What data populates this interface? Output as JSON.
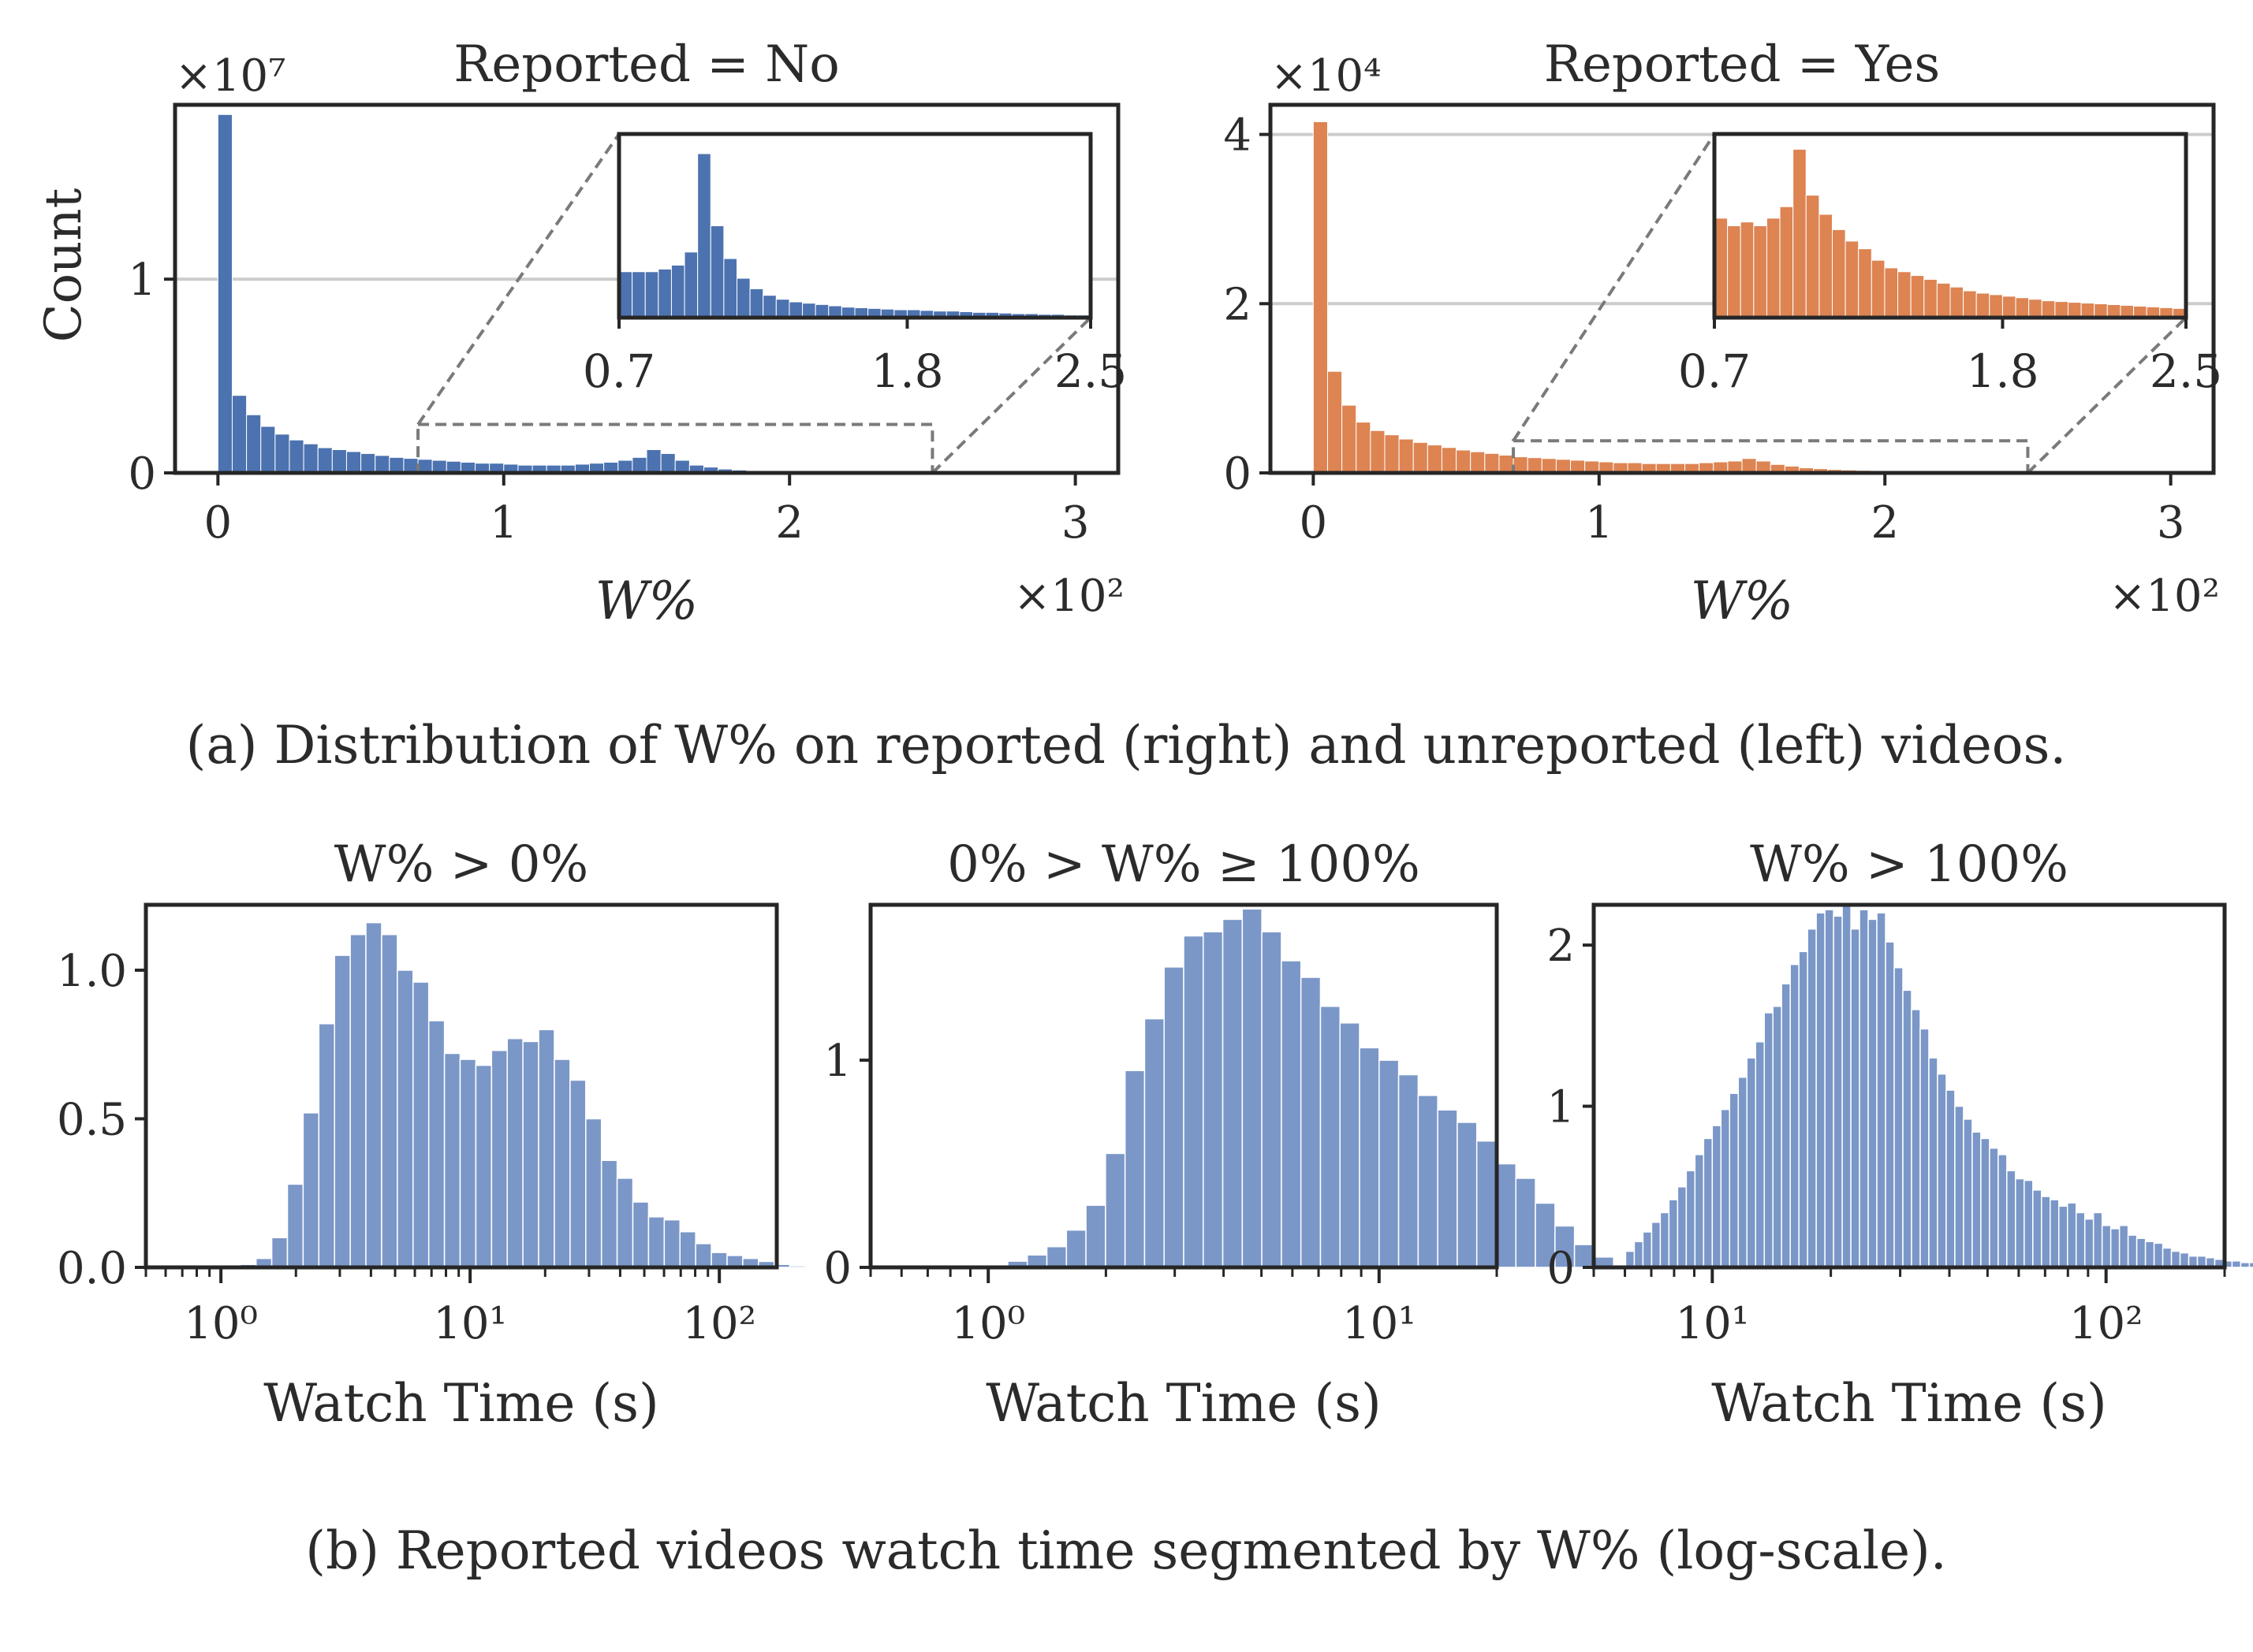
{
  "figure": {
    "caption_a": "(a) Distribution of W% on reported (right) and unreported (left) videos.",
    "caption_b": "(b) Reported videos watch time segmented by W% (log-scale).",
    "colors": {
      "blue": "#4c72b0",
      "orange": "#dd8452",
      "bar_light": "#7b97c8",
      "axis": "#262626",
      "grid": "#cccccc",
      "zoom": "#7a7a7a"
    }
  },
  "chart_data": [
    {
      "id": "no",
      "type": "bar",
      "title": "Reported = No",
      "xlabel": "W%",
      "ylabel": "Count",
      "x_multiplier": "×10²",
      "y_multiplier": "×10⁷",
      "color": "#4c72b0",
      "xlim": [
        -0.15,
        3.15
      ],
      "ylim": [
        0,
        1.9
      ],
      "xticks": [
        0,
        1,
        2,
        3
      ],
      "xtick_labels": [
        "0",
        "1",
        "2",
        "3"
      ],
      "yticks": [
        0,
        1
      ],
      "ytick_labels": [
        "0",
        "1"
      ],
      "grid_y": true,
      "bin_width": 0.05,
      "x_start": 0,
      "values": [
        1.85,
        0.4,
        0.3,
        0.24,
        0.2,
        0.17,
        0.15,
        0.13,
        0.12,
        0.11,
        0.1,
        0.09,
        0.08,
        0.075,
        0.07,
        0.065,
        0.06,
        0.055,
        0.05,
        0.05,
        0.045,
        0.04,
        0.04,
        0.04,
        0.04,
        0.045,
        0.05,
        0.055,
        0.065,
        0.08,
        0.12,
        0.1,
        0.065,
        0.04,
        0.03,
        0.02,
        0.015,
        0.01,
        0.008,
        0.006,
        0.005,
        0.004,
        0.003,
        0.003,
        0.002,
        0.002,
        0.002,
        0.001,
        0.001,
        0.001,
        0.001,
        0.001,
        0.001,
        0.001,
        0.001
      ],
      "zoom_rect": {
        "x": [
          0.7,
          2.5
        ],
        "y": [
          0,
          0.25
        ]
      },
      "inset": {
        "xlim": [
          0.7,
          2.5
        ],
        "ylim": [
          0,
          0.14
        ],
        "xticks": [
          0.7,
          1.8,
          2.5
        ],
        "xtick_labels": [
          "0.7",
          "1.8",
          "2.5"
        ],
        "bin_width": 0.05,
        "x_start": 0.7,
        "values": [
          0.035,
          0.035,
          0.035,
          0.037,
          0.04,
          0.05,
          0.125,
          0.07,
          0.045,
          0.03,
          0.022,
          0.017,
          0.014,
          0.012,
          0.011,
          0.01,
          0.009,
          0.008,
          0.0075,
          0.007,
          0.0065,
          0.006,
          0.006,
          0.0055,
          0.005,
          0.005,
          0.0045,
          0.004,
          0.004,
          0.0035,
          0.003,
          0.003,
          0.0025,
          0.0025,
          0.002,
          0.002
        ]
      }
    },
    {
      "id": "yes",
      "type": "bar",
      "title": "Reported = Yes",
      "xlabel": "W%",
      "ylabel": "",
      "x_multiplier": "×10²",
      "y_multiplier": "×10⁴",
      "color": "#dd8452",
      "xlim": [
        -0.15,
        3.15
      ],
      "ylim": [
        0,
        4.35
      ],
      "xticks": [
        0,
        1,
        2,
        3
      ],
      "xtick_labels": [
        "0",
        "1",
        "2",
        "3"
      ],
      "yticks": [
        0,
        2,
        4
      ],
      "ytick_labels": [
        "0",
        "2",
        "4"
      ],
      "grid_y": true,
      "bin_width": 0.05,
      "x_start": 0,
      "values": [
        4.15,
        1.2,
        0.8,
        0.6,
        0.5,
        0.45,
        0.4,
        0.36,
        0.33,
        0.3,
        0.27,
        0.25,
        0.23,
        0.21,
        0.19,
        0.18,
        0.17,
        0.16,
        0.15,
        0.14,
        0.13,
        0.12,
        0.12,
        0.11,
        0.11,
        0.11,
        0.11,
        0.12,
        0.13,
        0.14,
        0.17,
        0.14,
        0.1,
        0.08,
        0.06,
        0.05,
        0.04,
        0.035,
        0.03,
        0.025,
        0.02,
        0.02,
        0.015,
        0.015,
        0.01,
        0.01,
        0.01,
        0.008,
        0.006,
        0.005,
        0.005,
        0.004,
        0.004,
        0.003,
        0.003
      ],
      "zoom_rect": {
        "x": [
          0.7,
          2.5
        ],
        "y": [
          0,
          0.38
        ]
      },
      "inset": {
        "xlim": [
          0.7,
          2.5
        ],
        "ylim": [
          0,
          0.24
        ],
        "xticks": [
          0.7,
          1.8,
          2.5
        ],
        "xtick_labels": [
          "0.7",
          "1.8",
          "2.5"
        ],
        "bin_width": 0.05,
        "x_start": 0.7,
        "values": [
          0.13,
          0.12,
          0.125,
          0.12,
          0.13,
          0.145,
          0.22,
          0.16,
          0.135,
          0.115,
          0.1,
          0.09,
          0.075,
          0.065,
          0.06,
          0.055,
          0.05,
          0.045,
          0.04,
          0.035,
          0.032,
          0.03,
          0.028,
          0.026,
          0.024,
          0.022,
          0.021,
          0.02,
          0.019,
          0.018,
          0.017,
          0.016,
          0.015,
          0.014,
          0.013,
          0.012
        ]
      }
    },
    {
      "id": "seg1",
      "type": "bar",
      "title": "W% > 0%",
      "xlabel": "Watch Time (s)",
      "ylabel": "",
      "xscale": "log",
      "color": "#7b97c8",
      "xlim": [
        0.5,
        170
      ],
      "ylim": [
        0,
        1.22
      ],
      "yticks": [
        0.0,
        0.5,
        1.0
      ],
      "ytick_labels": [
        "0.0",
        "0.5",
        "1.0"
      ],
      "xticks": [
        1,
        10,
        100
      ],
      "xtick_labels": [
        "10⁰",
        "10¹",
        "10²"
      ],
      "log_start": -0.3,
      "log_step": 0.063,
      "values": [
        0,
        0,
        0,
        0,
        0,
        0.002,
        0.01,
        0.03,
        0.1,
        0.28,
        0.52,
        0.82,
        1.05,
        1.12,
        1.16,
        1.12,
        1.0,
        0.96,
        0.83,
        0.72,
        0.7,
        0.68,
        0.73,
        0.77,
        0.76,
        0.8,
        0.7,
        0.63,
        0.5,
        0.36,
        0.3,
        0.22,
        0.17,
        0.16,
        0.12,
        0.08,
        0.05,
        0.04,
        0.03,
        0.02,
        0.01,
        0.005,
        0.002
      ]
    },
    {
      "id": "seg2",
      "type": "bar",
      "title": "0% > W% ≥ 100%",
      "xlabel": "Watch Time (s)",
      "ylabel": "",
      "xscale": "log",
      "color": "#7b97c8",
      "xlim": [
        0.5,
        20
      ],
      "ylim": [
        0,
        1.75
      ],
      "yticks": [
        0,
        1
      ],
      "ytick_labels": [
        "0",
        "1"
      ],
      "xticks": [
        1,
        10
      ],
      "xtick_labels": [
        "10⁰",
        "10¹"
      ],
      "log_start": -0.1,
      "log_step": 0.05,
      "values": [
        0,
        0,
        0.01,
        0.03,
        0.06,
        0.1,
        0.18,
        0.3,
        0.55,
        0.95,
        1.2,
        1.45,
        1.6,
        1.62,
        1.68,
        1.73,
        1.62,
        1.48,
        1.4,
        1.26,
        1.18,
        1.06,
        1.0,
        0.93,
        0.83,
        0.76,
        0.7,
        0.61,
        0.5,
        0.43,
        0.31,
        0.2,
        0.11,
        0.05
      ]
    },
    {
      "id": "seg3",
      "type": "bar",
      "title": "W% > 100%",
      "xlabel": "Watch Time (s)",
      "ylabel": "",
      "xscale": "log",
      "color": "#7b97c8",
      "xlim": [
        5,
        200
      ],
      "ylim": [
        0,
        2.25
      ],
      "yticks": [
        0,
        1,
        2
      ],
      "ytick_labels": [
        "0",
        "1",
        "2"
      ],
      "xticks": [
        10,
        100
      ],
      "xtick_labels": [
        "10¹",
        "10²"
      ],
      "log_start": 0.78,
      "log_step": 0.022,
      "values": [
        0.1,
        0.16,
        0.22,
        0.28,
        0.34,
        0.42,
        0.5,
        0.6,
        0.7,
        0.8,
        0.88,
        0.98,
        1.08,
        1.18,
        1.3,
        1.4,
        1.58,
        1.62,
        1.76,
        1.88,
        1.96,
        2.1,
        2.2,
        2.22,
        2.18,
        2.25,
        2.1,
        2.22,
        2.16,
        2.2,
        2.02,
        1.86,
        1.72,
        1.6,
        1.48,
        1.3,
        1.2,
        1.1,
        1.0,
        0.92,
        0.84,
        0.8,
        0.74,
        0.7,
        0.6,
        0.55,
        0.54,
        0.48,
        0.44,
        0.42,
        0.38,
        0.4,
        0.34,
        0.3,
        0.34,
        0.26,
        0.24,
        0.26,
        0.2,
        0.18,
        0.16,
        0.15,
        0.12,
        0.1,
        0.09,
        0.07,
        0.07,
        0.06,
        0.05,
        0.04,
        0.04,
        0.03,
        0.03,
        0.02,
        0.02,
        0.02,
        0.015,
        0.01,
        0.01,
        0.01,
        0.008,
        0.006,
        0.005,
        0.004,
        0.003,
        0.003,
        0.002,
        0.002,
        0.002,
        0.002,
        0.002,
        0.002,
        0.002,
        0.002,
        0.002,
        0.02
      ]
    }
  ]
}
